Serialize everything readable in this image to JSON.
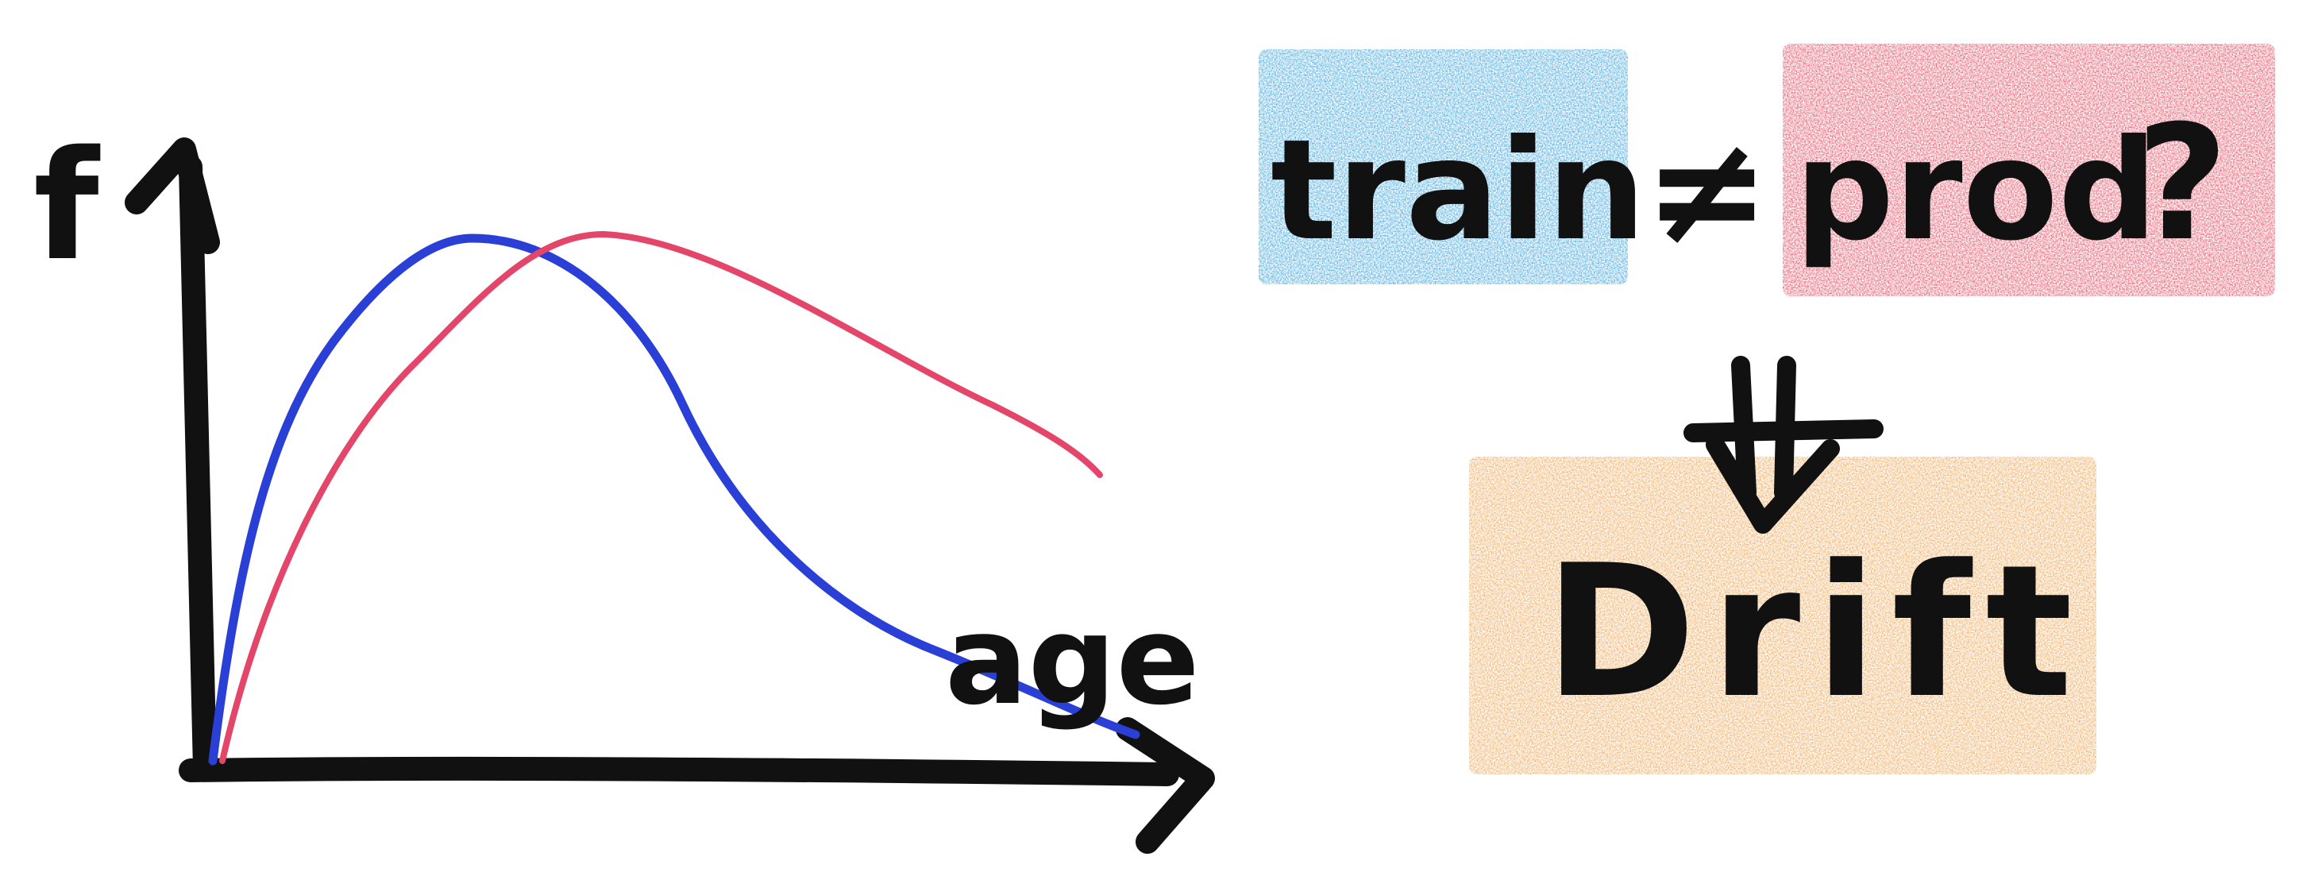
{
  "graph": {
    "y_axis_label": "f",
    "x_axis_label": "age",
    "curves": [
      {
        "name": "train",
        "color": "#2a3fd6"
      },
      {
        "name": "prod",
        "color": "#e4466a"
      }
    ]
  },
  "flow": {
    "left_word": "train",
    "operator": "≠",
    "right_word": "prod",
    "question_mark": "?",
    "result_word": "Drift",
    "arrow": "down-arrow"
  },
  "colors": {
    "ink": "#111111",
    "train_highlight": "#3aa3dc",
    "prod_highlight": "#e24a60",
    "drift_highlight": "#efa553",
    "train_curve": "#2a3fd6",
    "prod_curve": "#e4466a",
    "background": "#ffffff"
  }
}
